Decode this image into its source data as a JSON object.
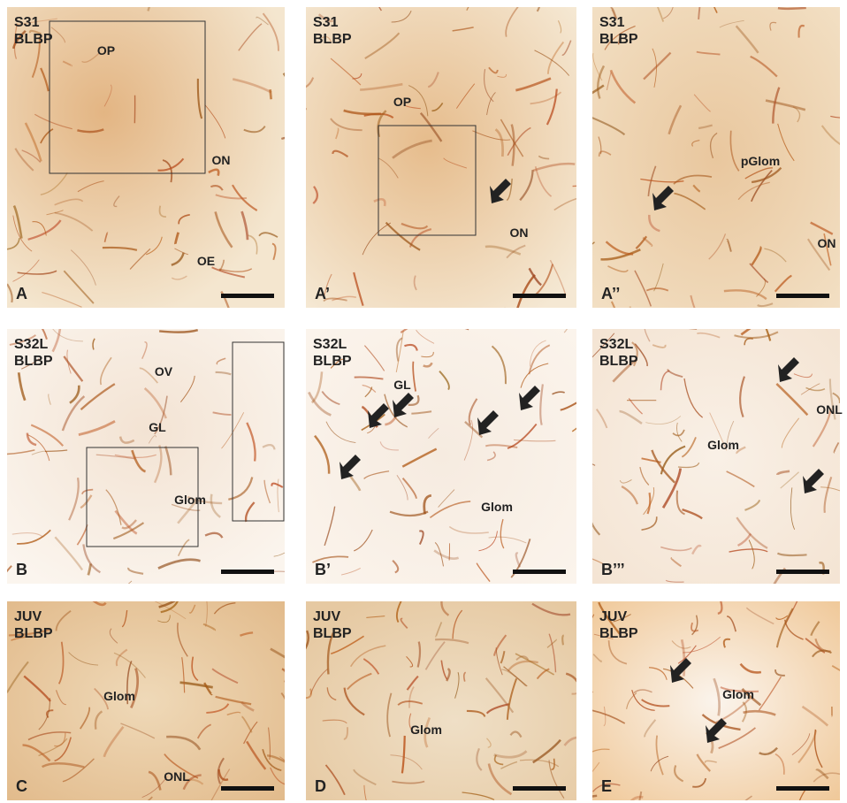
{
  "panels": [
    {
      "stage": "S31",
      "marker": "BLBP",
      "letter": "A",
      "labels": [
        "OP",
        "ON",
        "OE"
      ]
    },
    {
      "stage": "S31",
      "marker": "BLBP",
      "letter": "A’",
      "labels": [
        "OP",
        "ON"
      ]
    },
    {
      "stage": "S31",
      "marker": "BLBP",
      "letter": "A’’",
      "labels": [
        "pGlom",
        "ON"
      ]
    },
    {
      "stage": "S32L",
      "marker": "BLBP",
      "letter": "B",
      "labels": [
        "OV",
        "GL",
        "Glom"
      ]
    },
    {
      "stage": "S32L",
      "marker": "BLBP",
      "letter": "B’",
      "labels": [
        "GL",
        "Glom"
      ]
    },
    {
      "stage": "S32L",
      "marker": "BLBP",
      "letter": "B’’’",
      "labels": [
        "ONL",
        "Glom"
      ]
    },
    {
      "stage": "JUV",
      "marker": "BLBP",
      "letter": "C",
      "labels": [
        "Glom",
        "ONL"
      ]
    },
    {
      "stage": "JUV",
      "marker": "BLBP",
      "letter": "D",
      "labels": [
        "Glom"
      ]
    },
    {
      "stage": "JUV",
      "marker": "BLBP",
      "letter": "E",
      "labels": [
        "Glom"
      ]
    }
  ]
}
